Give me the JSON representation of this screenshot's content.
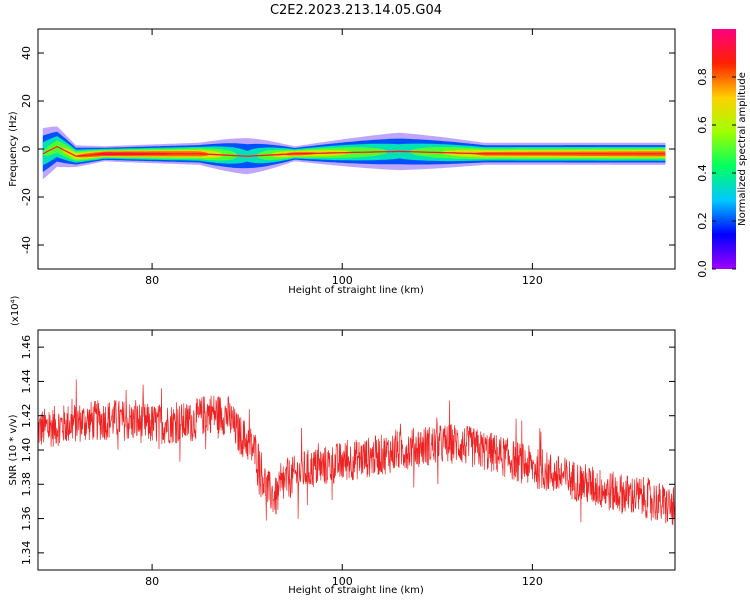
{
  "figure": {
    "title": "C2E2.2023.213.14.05.G04"
  },
  "chart_data": [
    {
      "type": "heatmap",
      "xlabel": "Height of straight line (km)",
      "ylabel": "Frequency (Hz)",
      "xlim": [
        68,
        135
      ],
      "ylim": [
        -50,
        50
      ],
      "xticks": [
        80,
        100,
        120
      ],
      "yticks": [
        -40,
        -20,
        0,
        20,
        40
      ],
      "colorbar": {
        "label": "Normalized spectral amplitude",
        "range": [
          0,
          1
        ],
        "ticks": [
          0.0,
          0.2,
          0.4,
          0.6,
          0.8
        ],
        "colormap": [
          "#a000ff",
          "#0000ff",
          "#00c8ff",
          "#00ff60",
          "#a0ff00",
          "#ffd000",
          "#ff2000",
          "#ff0080"
        ]
      },
      "ridge_frequency_hz": -2,
      "ridge_profile": [
        {
          "x": 68.5,
          "f": -2,
          "width_hz": 8,
          "amp": 0.5
        },
        {
          "x": 70,
          "f": 1,
          "width_hz": 6,
          "amp": 0.6
        },
        {
          "x": 72,
          "f": -3,
          "width_hz": 3,
          "amp": 0.8
        },
        {
          "x": 75,
          "f": -2,
          "width_hz": 2,
          "amp": 1.0
        },
        {
          "x": 85,
          "f": -2,
          "width_hz": 3,
          "amp": 0.9
        },
        {
          "x": 90,
          "f": -3,
          "width_hz": 6,
          "amp": 0.4
        },
        {
          "x": 95,
          "f": -2,
          "width_hz": 2,
          "amp": 0.9
        },
        {
          "x": 106,
          "f": -1,
          "width_hz": 6,
          "amp": 0.45
        },
        {
          "x": 115,
          "f": -2,
          "width_hz": 3,
          "amp": 0.85
        },
        {
          "x": 134,
          "f": -2,
          "width_hz": 3,
          "amp": 0.9
        }
      ]
    },
    {
      "type": "line",
      "xlabel": "Height of straight line (km)",
      "ylabel": "SNR (10 * v/v)",
      "yexponent_label": "(x10⁴)",
      "xlim": [
        68,
        135
      ],
      "ylim": [
        1.33,
        1.47
      ],
      "xticks": [
        80,
        100,
        120
      ],
      "yticks": [
        1.34,
        1.36,
        1.38,
        1.4,
        1.42,
        1.44,
        1.46
      ],
      "ytick_labels": [
        "1.34",
        "1.36",
        "1.38",
        "1.40",
        "1.42",
        "1.44",
        "1.46"
      ],
      "series": [
        {
          "color": "#ee2222",
          "trend_x": [
            68,
            72,
            76,
            80,
            84,
            86,
            88,
            89,
            90,
            91,
            92,
            93,
            94,
            96,
            100,
            104,
            108,
            112,
            116,
            120,
            124,
            128,
            132,
            135
          ],
          "trend_y": [
            1.412,
            1.416,
            1.418,
            1.415,
            1.416,
            1.422,
            1.42,
            1.41,
            1.405,
            1.398,
            1.378,
            1.372,
            1.382,
            1.388,
            1.393,
            1.397,
            1.402,
            1.404,
            1.398,
            1.39,
            1.383,
            1.376,
            1.372,
            1.366
          ],
          "noise_amplitude": 0.012
        }
      ]
    }
  ]
}
